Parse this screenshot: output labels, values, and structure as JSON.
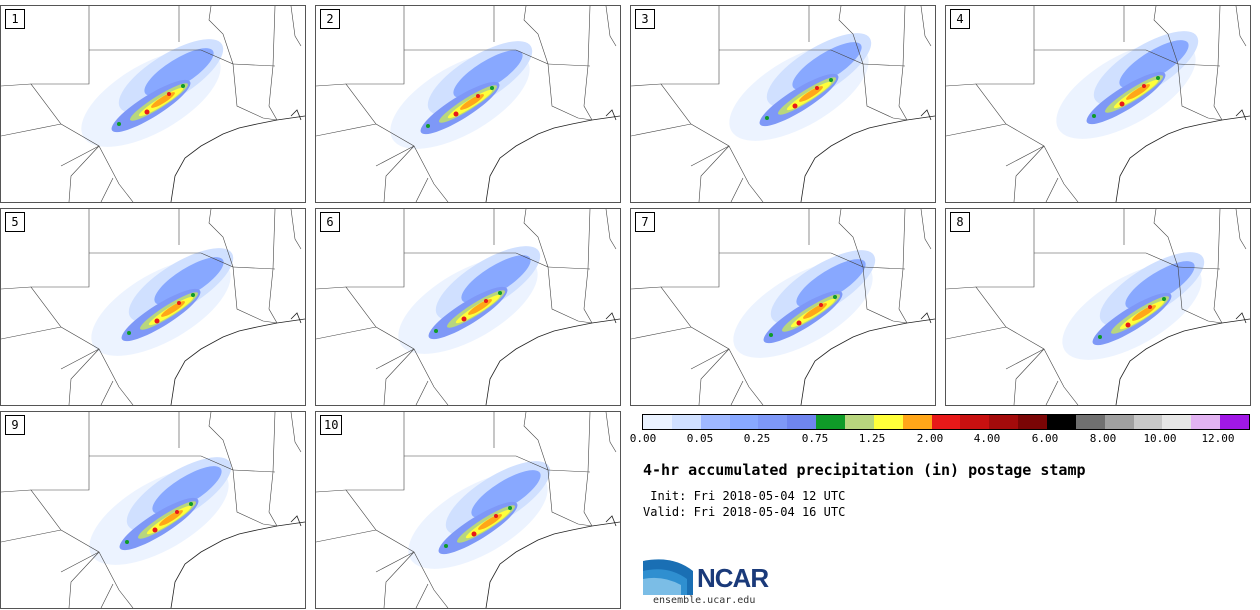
{
  "panels": [
    {
      "label": "1"
    },
    {
      "label": "2"
    },
    {
      "label": "3"
    },
    {
      "label": "4"
    },
    {
      "label": "5"
    },
    {
      "label": "6"
    },
    {
      "label": "7"
    },
    {
      "label": "8"
    },
    {
      "label": "9"
    },
    {
      "label": "10"
    }
  ],
  "colorbar": {
    "colors": [
      "#eaf2ff",
      "#d0e0ff",
      "#9fb8ff",
      "#88a8ff",
      "#7e98f7",
      "#6f85ef",
      "#0f9b28",
      "#b8d67e",
      "#ffff3a",
      "#ffa619",
      "#e81919",
      "#c81010",
      "#a40b0b",
      "#7a0505",
      "#000000",
      "#707070",
      "#a0a0a0",
      "#c8c8c8",
      "#e6e6e6",
      "#e2b3f2",
      "#a018e6"
    ],
    "tick_labels": [
      "0.00",
      "0.05",
      "0.25",
      "0.75",
      "1.25",
      "2.00",
      "4.00",
      "6.00",
      "8.00",
      "10.00",
      "12.00"
    ]
  },
  "title": "4-hr accumulated precipitation (in) postage stamp",
  "init_line": " Init: Fri 2018-05-04 12 UTC",
  "valid_line": "Valid: Fri 2018-05-04 16 UTC",
  "logo_text": "NCAR",
  "site": "ensemble.ucar.edu"
}
